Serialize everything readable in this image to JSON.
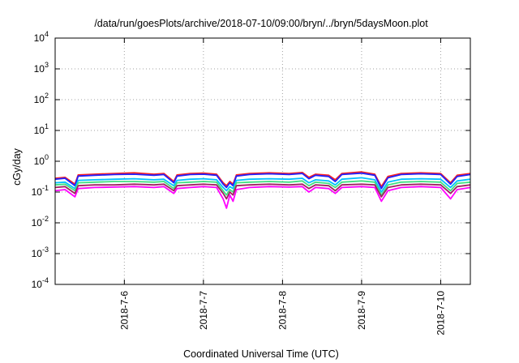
{
  "chart_data": {
    "type": "line",
    "title": "/data/run/goesPlots/archive/2018-07-10/09:00/bryn/../bryn/5daysMoon.plot",
    "xlabel": "Coordinated Universal Time (UTC)",
    "ylabel": "cGy/day",
    "yscale": "log",
    "ylim": [
      0.0001,
      10000
    ],
    "y_ticks": [
      {
        "value": 0.0001,
        "base": "10",
        "exp": "-4"
      },
      {
        "value": 0.001,
        "base": "10",
        "exp": "-3"
      },
      {
        "value": 0.01,
        "base": "10",
        "exp": "-2"
      },
      {
        "value": 0.1,
        "base": "10",
        "exp": "-1"
      },
      {
        "value": 1,
        "base": "10",
        "exp": "0"
      },
      {
        "value": 10,
        "base": "10",
        "exp": "1"
      },
      {
        "value": 100,
        "base": "10",
        "exp": "2"
      },
      {
        "value": 1000,
        "base": "10",
        "exp": "3"
      },
      {
        "value": 10000,
        "base": "10",
        "exp": "4"
      }
    ],
    "xlim": [
      "2018-07-05T03:00",
      "2018-07-10T09:00"
    ],
    "x_ticks": [
      {
        "value": "2018-07-06T00:00",
        "label": "2018-7-6"
      },
      {
        "value": "2018-07-07T00:00",
        "label": "2018-7-7"
      },
      {
        "value": "2018-07-08T00:00",
        "label": "2018-7-8"
      },
      {
        "value": "2018-07-09T00:00",
        "label": "2018-7-9"
      },
      {
        "value": "2018-07-10T00:00",
        "label": "2018-7-10"
      }
    ],
    "grid": true,
    "series": [
      {
        "color": "#ff00ff",
        "values": [
          [
            "2018-07-05T03:00",
            0.11
          ],
          [
            "2018-07-05T06:00",
            0.12
          ],
          [
            "2018-07-05T09:00",
            0.07
          ],
          [
            "2018-07-05T10:00",
            0.13
          ],
          [
            "2018-07-05T15:00",
            0.14
          ],
          [
            "2018-07-05T21:00",
            0.145
          ],
          [
            "2018-07-06T03:00",
            0.15
          ],
          [
            "2018-07-06T09:00",
            0.14
          ],
          [
            "2018-07-06T12:00",
            0.15
          ],
          [
            "2018-07-06T15:00",
            0.09
          ],
          [
            "2018-07-06T16:00",
            0.13
          ],
          [
            "2018-07-06T20:00",
            0.14
          ],
          [
            "2018-07-07T00:00",
            0.15
          ],
          [
            "2018-07-07T04:00",
            0.14
          ],
          [
            "2018-07-07T06:00",
            0.06
          ],
          [
            "2018-07-07T07:00",
            0.03
          ],
          [
            "2018-07-07T08:00",
            0.08
          ],
          [
            "2018-07-07T09:00",
            0.05
          ],
          [
            "2018-07-07T10:00",
            0.12
          ],
          [
            "2018-07-07T14:00",
            0.14
          ],
          [
            "2018-07-07T20:00",
            0.15
          ],
          [
            "2018-07-08T02:00",
            0.145
          ],
          [
            "2018-07-08T06:00",
            0.15
          ],
          [
            "2018-07-08T08:00",
            0.1
          ],
          [
            "2018-07-08T10:00",
            0.14
          ],
          [
            "2018-07-08T14:00",
            0.13
          ],
          [
            "2018-07-08T16:00",
            0.09
          ],
          [
            "2018-07-08T18:00",
            0.14
          ],
          [
            "2018-07-09T00:00",
            0.15
          ],
          [
            "2018-07-09T04:00",
            0.14
          ],
          [
            "2018-07-09T06:00",
            0.05
          ],
          [
            "2018-07-09T08:00",
            0.11
          ],
          [
            "2018-07-09T12:00",
            0.14
          ],
          [
            "2018-07-09T18:00",
            0.15
          ],
          [
            "2018-07-10T00:00",
            0.14
          ],
          [
            "2018-07-10T03:00",
            0.06
          ],
          [
            "2018-07-10T05:00",
            0.12
          ],
          [
            "2018-07-10T09:00",
            0.14
          ]
        ]
      },
      {
        "color": "#ff2020",
        "values": [
          [
            "2018-07-05T03:00",
            0.28
          ],
          [
            "2018-07-05T06:00",
            0.3
          ],
          [
            "2018-07-05T09:00",
            0.18
          ],
          [
            "2018-07-05T10:00",
            0.36
          ],
          [
            "2018-07-05T15:00",
            0.38
          ],
          [
            "2018-07-05T21:00",
            0.4
          ],
          [
            "2018-07-06T03:00",
            0.42
          ],
          [
            "2018-07-06T09:00",
            0.38
          ],
          [
            "2018-07-06T12:00",
            0.4
          ],
          [
            "2018-07-06T15:00",
            0.22
          ],
          [
            "2018-07-06T16:00",
            0.36
          ],
          [
            "2018-07-06T20:00",
            0.4
          ],
          [
            "2018-07-07T00:00",
            0.41
          ],
          [
            "2018-07-07T04:00",
            0.38
          ],
          [
            "2018-07-07T06:00",
            0.2
          ],
          [
            "2018-07-07T07:00",
            0.16
          ],
          [
            "2018-07-07T08:00",
            0.22
          ],
          [
            "2018-07-07T09:00",
            0.18
          ],
          [
            "2018-07-07T10:00",
            0.36
          ],
          [
            "2018-07-07T14:00",
            0.4
          ],
          [
            "2018-07-07T20:00",
            0.42
          ],
          [
            "2018-07-08T02:00",
            0.4
          ],
          [
            "2018-07-08T06:00",
            0.43
          ],
          [
            "2018-07-08T08:00",
            0.3
          ],
          [
            "2018-07-08T10:00",
            0.38
          ],
          [
            "2018-07-08T14:00",
            0.35
          ],
          [
            "2018-07-08T16:00",
            0.25
          ],
          [
            "2018-07-08T18:00",
            0.4
          ],
          [
            "2018-07-09T00:00",
            0.45
          ],
          [
            "2018-07-09T04:00",
            0.38
          ],
          [
            "2018-07-09T06:00",
            0.15
          ],
          [
            "2018-07-09T08:00",
            0.32
          ],
          [
            "2018-07-09T12:00",
            0.4
          ],
          [
            "2018-07-09T18:00",
            0.42
          ],
          [
            "2018-07-10T00:00",
            0.4
          ],
          [
            "2018-07-10T03:00",
            0.2
          ],
          [
            "2018-07-10T05:00",
            0.35
          ],
          [
            "2018-07-10T09:00",
            0.4
          ]
        ]
      },
      {
        "color": "#2020ff",
        "values": [
          [
            "2018-07-05T03:00",
            0.26
          ],
          [
            "2018-07-05T06:00",
            0.28
          ],
          [
            "2018-07-05T09:00",
            0.16
          ],
          [
            "2018-07-05T10:00",
            0.33
          ],
          [
            "2018-07-05T15:00",
            0.35
          ],
          [
            "2018-07-05T21:00",
            0.37
          ],
          [
            "2018-07-06T03:00",
            0.38
          ],
          [
            "2018-07-06T09:00",
            0.35
          ],
          [
            "2018-07-06T12:00",
            0.37
          ],
          [
            "2018-07-06T15:00",
            0.2
          ],
          [
            "2018-07-06T16:00",
            0.33
          ],
          [
            "2018-07-06T20:00",
            0.37
          ],
          [
            "2018-07-07T00:00",
            0.38
          ],
          [
            "2018-07-07T04:00",
            0.35
          ],
          [
            "2018-07-07T06:00",
            0.18
          ],
          [
            "2018-07-07T07:00",
            0.14
          ],
          [
            "2018-07-07T08:00",
            0.2
          ],
          [
            "2018-07-07T09:00",
            0.16
          ],
          [
            "2018-07-07T10:00",
            0.33
          ],
          [
            "2018-07-07T14:00",
            0.37
          ],
          [
            "2018-07-07T20:00",
            0.39
          ],
          [
            "2018-07-08T02:00",
            0.37
          ],
          [
            "2018-07-08T06:00",
            0.4
          ],
          [
            "2018-07-08T08:00",
            0.27
          ],
          [
            "2018-07-08T10:00",
            0.35
          ],
          [
            "2018-07-08T14:00",
            0.32
          ],
          [
            "2018-07-08T16:00",
            0.22
          ],
          [
            "2018-07-08T18:00",
            0.37
          ],
          [
            "2018-07-09T00:00",
            0.41
          ],
          [
            "2018-07-09T04:00",
            0.35
          ],
          [
            "2018-07-09T06:00",
            0.13
          ],
          [
            "2018-07-09T08:00",
            0.29
          ],
          [
            "2018-07-09T12:00",
            0.37
          ],
          [
            "2018-07-09T18:00",
            0.39
          ],
          [
            "2018-07-10T00:00",
            0.37
          ],
          [
            "2018-07-10T03:00",
            0.18
          ],
          [
            "2018-07-10T05:00",
            0.32
          ],
          [
            "2018-07-10T09:00",
            0.37
          ]
        ]
      },
      {
        "color": "#00c0ff",
        "values": [
          [
            "2018-07-05T03:00",
            0.2
          ],
          [
            "2018-07-05T06:00",
            0.21
          ],
          [
            "2018-07-05T09:00",
            0.13
          ],
          [
            "2018-07-05T10:00",
            0.24
          ],
          [
            "2018-07-05T15:00",
            0.25
          ],
          [
            "2018-07-05T21:00",
            0.26
          ],
          [
            "2018-07-06T03:00",
            0.27
          ],
          [
            "2018-07-06T09:00",
            0.25
          ],
          [
            "2018-07-06T12:00",
            0.26
          ],
          [
            "2018-07-06T15:00",
            0.16
          ],
          [
            "2018-07-06T16:00",
            0.24
          ],
          [
            "2018-07-06T20:00",
            0.26
          ],
          [
            "2018-07-07T00:00",
            0.27
          ],
          [
            "2018-07-07T04:00",
            0.25
          ],
          [
            "2018-07-07T06:00",
            0.14
          ],
          [
            "2018-07-07T07:00",
            0.11
          ],
          [
            "2018-07-07T08:00",
            0.15
          ],
          [
            "2018-07-07T09:00",
            0.13
          ],
          [
            "2018-07-07T10:00",
            0.24
          ],
          [
            "2018-07-07T14:00",
            0.26
          ],
          [
            "2018-07-07T20:00",
            0.27
          ],
          [
            "2018-07-08T02:00",
            0.26
          ],
          [
            "2018-07-08T06:00",
            0.28
          ],
          [
            "2018-07-08T08:00",
            0.2
          ],
          [
            "2018-07-08T10:00",
            0.25
          ],
          [
            "2018-07-08T14:00",
            0.23
          ],
          [
            "2018-07-08T16:00",
            0.17
          ],
          [
            "2018-07-08T18:00",
            0.26
          ],
          [
            "2018-07-09T00:00",
            0.29
          ],
          [
            "2018-07-09T04:00",
            0.25
          ],
          [
            "2018-07-09T06:00",
            0.1
          ],
          [
            "2018-07-09T08:00",
            0.21
          ],
          [
            "2018-07-09T12:00",
            0.26
          ],
          [
            "2018-07-09T18:00",
            0.27
          ],
          [
            "2018-07-10T00:00",
            0.26
          ],
          [
            "2018-07-10T03:00",
            0.14
          ],
          [
            "2018-07-10T05:00",
            0.23
          ],
          [
            "2018-07-10T09:00",
            0.26
          ]
        ]
      },
      {
        "color": "#40e080",
        "values": [
          [
            "2018-07-05T03:00",
            0.17
          ],
          [
            "2018-07-05T06:00",
            0.18
          ],
          [
            "2018-07-05T09:00",
            0.11
          ],
          [
            "2018-07-05T10:00",
            0.2
          ],
          [
            "2018-07-05T15:00",
            0.21
          ],
          [
            "2018-07-05T21:00",
            0.22
          ],
          [
            "2018-07-06T03:00",
            0.22
          ],
          [
            "2018-07-06T09:00",
            0.21
          ],
          [
            "2018-07-06T12:00",
            0.22
          ],
          [
            "2018-07-06T15:00",
            0.13
          ],
          [
            "2018-07-06T16:00",
            0.2
          ],
          [
            "2018-07-06T20:00",
            0.21
          ],
          [
            "2018-07-07T00:00",
            0.22
          ],
          [
            "2018-07-07T04:00",
            0.21
          ],
          [
            "2018-07-07T06:00",
            0.11
          ],
          [
            "2018-07-07T07:00",
            0.08
          ],
          [
            "2018-07-07T08:00",
            0.12
          ],
          [
            "2018-07-07T09:00",
            0.1
          ],
          [
            "2018-07-07T10:00",
            0.2
          ],
          [
            "2018-07-07T14:00",
            0.21
          ],
          [
            "2018-07-07T20:00",
            0.22
          ],
          [
            "2018-07-08T02:00",
            0.21
          ],
          [
            "2018-07-08T06:00",
            0.23
          ],
          [
            "2018-07-08T08:00",
            0.16
          ],
          [
            "2018-07-08T10:00",
            0.21
          ],
          [
            "2018-07-08T14:00",
            0.19
          ],
          [
            "2018-07-08T16:00",
            0.14
          ],
          [
            "2018-07-08T18:00",
            0.21
          ],
          [
            "2018-07-09T00:00",
            0.23
          ],
          [
            "2018-07-09T04:00",
            0.21
          ],
          [
            "2018-07-09T06:00",
            0.08
          ],
          [
            "2018-07-09T08:00",
            0.17
          ],
          [
            "2018-07-09T12:00",
            0.21
          ],
          [
            "2018-07-09T18:00",
            0.22
          ],
          [
            "2018-07-10T00:00",
            0.21
          ],
          [
            "2018-07-10T03:00",
            0.11
          ],
          [
            "2018-07-10T05:00",
            0.19
          ],
          [
            "2018-07-10T09:00",
            0.21
          ]
        ]
      },
      {
        "color": "#a02060",
        "values": [
          [
            "2018-07-05T03:00",
            0.14
          ],
          [
            "2018-07-05T06:00",
            0.15
          ],
          [
            "2018-07-05T09:00",
            0.09
          ],
          [
            "2018-07-05T10:00",
            0.16
          ],
          [
            "2018-07-05T15:00",
            0.17
          ],
          [
            "2018-07-05T21:00",
            0.17
          ],
          [
            "2018-07-06T03:00",
            0.18
          ],
          [
            "2018-07-06T09:00",
            0.17
          ],
          [
            "2018-07-06T12:00",
            0.18
          ],
          [
            "2018-07-06T15:00",
            0.11
          ],
          [
            "2018-07-06T16:00",
            0.16
          ],
          [
            "2018-07-06T20:00",
            0.17
          ],
          [
            "2018-07-07T00:00",
            0.18
          ],
          [
            "2018-07-07T04:00",
            0.17
          ],
          [
            "2018-07-07T06:00",
            0.09
          ],
          [
            "2018-07-07T07:00",
            0.06
          ],
          [
            "2018-07-07T08:00",
            0.1
          ],
          [
            "2018-07-07T09:00",
            0.08
          ],
          [
            "2018-07-07T10:00",
            0.16
          ],
          [
            "2018-07-07T14:00",
            0.17
          ],
          [
            "2018-07-07T20:00",
            0.18
          ],
          [
            "2018-07-08T02:00",
            0.17
          ],
          [
            "2018-07-08T06:00",
            0.18
          ],
          [
            "2018-07-08T08:00",
            0.13
          ],
          [
            "2018-07-08T10:00",
            0.17
          ],
          [
            "2018-07-08T14:00",
            0.16
          ],
          [
            "2018-07-08T16:00",
            0.11
          ],
          [
            "2018-07-08T18:00",
            0.17
          ],
          [
            "2018-07-09T00:00",
            0.18
          ],
          [
            "2018-07-09T04:00",
            0.17
          ],
          [
            "2018-07-09T06:00",
            0.07
          ],
          [
            "2018-07-09T08:00",
            0.14
          ],
          [
            "2018-07-09T12:00",
            0.17
          ],
          [
            "2018-07-09T18:00",
            0.18
          ],
          [
            "2018-07-10T00:00",
            0.17
          ],
          [
            "2018-07-10T03:00",
            0.09
          ],
          [
            "2018-07-10T05:00",
            0.15
          ],
          [
            "2018-07-10T09:00",
            0.17
          ]
        ]
      }
    ]
  }
}
